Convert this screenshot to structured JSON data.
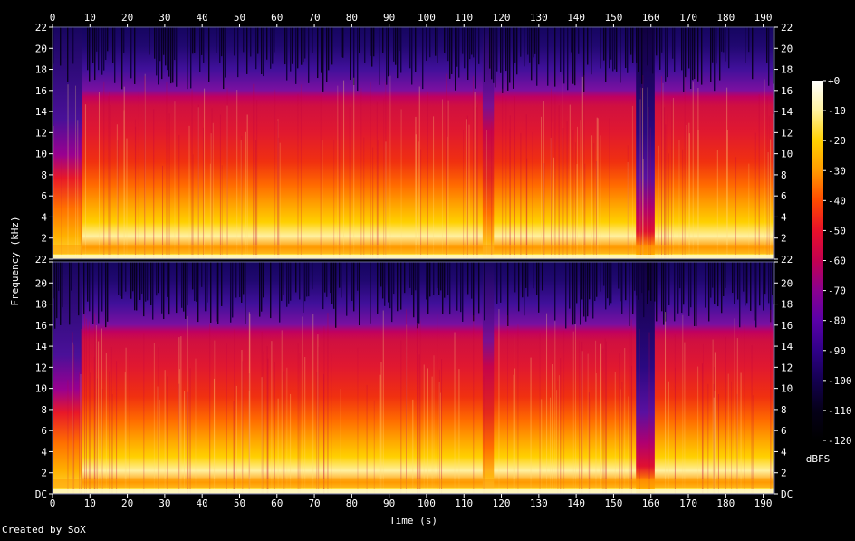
{
  "chart_data": {
    "type": "heatmap",
    "title": "",
    "xlabel": "Time (s)",
    "ylabel": "Frequency (kHz)",
    "xlim": [
      0,
      193
    ],
    "x_ticks": [
      "0",
      "10",
      "20",
      "30",
      "40",
      "50",
      "60",
      "70",
      "80",
      "90",
      "100",
      "110",
      "120",
      "130",
      "140",
      "150",
      "160",
      "170",
      "180",
      "190"
    ],
    "x_tick_values": [
      0,
      10,
      20,
      30,
      40,
      50,
      60,
      70,
      80,
      90,
      100,
      110,
      120,
      130,
      140,
      150,
      160,
      170,
      180,
      190
    ],
    "channels": [
      {
        "ylim": [
          0,
          22
        ],
        "y_ticks": [
          "DC",
          "2",
          "4",
          "6",
          "8",
          "10",
          "12",
          "14",
          "16",
          "18",
          "20",
          "22"
        ]
      },
      {
        "ylim": [
          0,
          22
        ],
        "y_ticks": [
          "DC",
          "2",
          "4",
          "6",
          "8",
          "10",
          "12",
          "14",
          "16",
          "18",
          "20",
          "22"
        ]
      }
    ],
    "y_tick_values": [
      0,
      2,
      4,
      6,
      8,
      10,
      12,
      14,
      16,
      18,
      20,
      22
    ],
    "top_channel_bottom_label": "22",
    "lowpass_cutoff_khz": 16,
    "dropout_segment_s": [
      156,
      161
    ],
    "quiet_segment_s": [
      115,
      118
    ],
    "colorbar": {
      "label": "dBFS",
      "range": [
        -120,
        0
      ],
      "ticks": [
        "+0",
        "-10",
        "-20",
        "-30",
        "-40",
        "-50",
        "-60",
        "-70",
        "-80",
        "-90",
        "-100",
        "-110",
        "-120"
      ],
      "tick_values": [
        0,
        -10,
        -20,
        -30,
        -40,
        -50,
        -60,
        -70,
        -80,
        -90,
        -100,
        -110,
        -120
      ],
      "colors": [
        "#ffffff",
        "#fff3a0",
        "#ffd000",
        "#ff9a00",
        "#ff4a00",
        "#e8102a",
        "#c20050",
        "#8a0090",
        "#5a00a8",
        "#300088",
        "#140050",
        "#050018",
        "#000000"
      ]
    }
  },
  "footer": {
    "credit": "Created by SoX"
  }
}
